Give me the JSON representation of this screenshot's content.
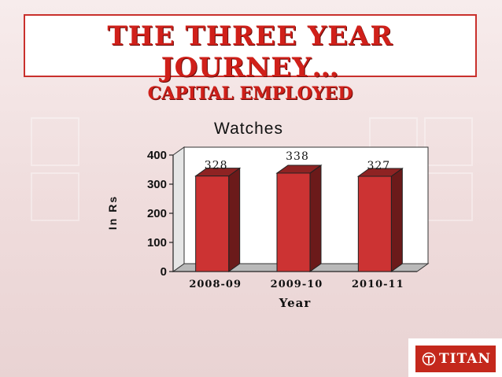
{
  "header": {
    "title_line1": "THE THREE YEAR JOURNEY…",
    "title_line2": "CAPITAL EMPLOYED"
  },
  "logo": {
    "text": "TITAN",
    "color": "#c4281c"
  },
  "chart_data": {
    "type": "bar",
    "title": "Watches",
    "categories": [
      "2008-09",
      "2009-10",
      "2010-11"
    ],
    "values": [
      328,
      338,
      327
    ],
    "data_labels": [
      "328",
      "338",
      "327"
    ],
    "xlabel": "Year",
    "ylabel": "In Rs",
    "ylim": [
      0,
      400
    ],
    "yticks": [
      0,
      100,
      200,
      300,
      400
    ],
    "bar_color": "#cc3333",
    "bar_side_color": "#6b1a1a",
    "grid": false,
    "legend": "none"
  }
}
